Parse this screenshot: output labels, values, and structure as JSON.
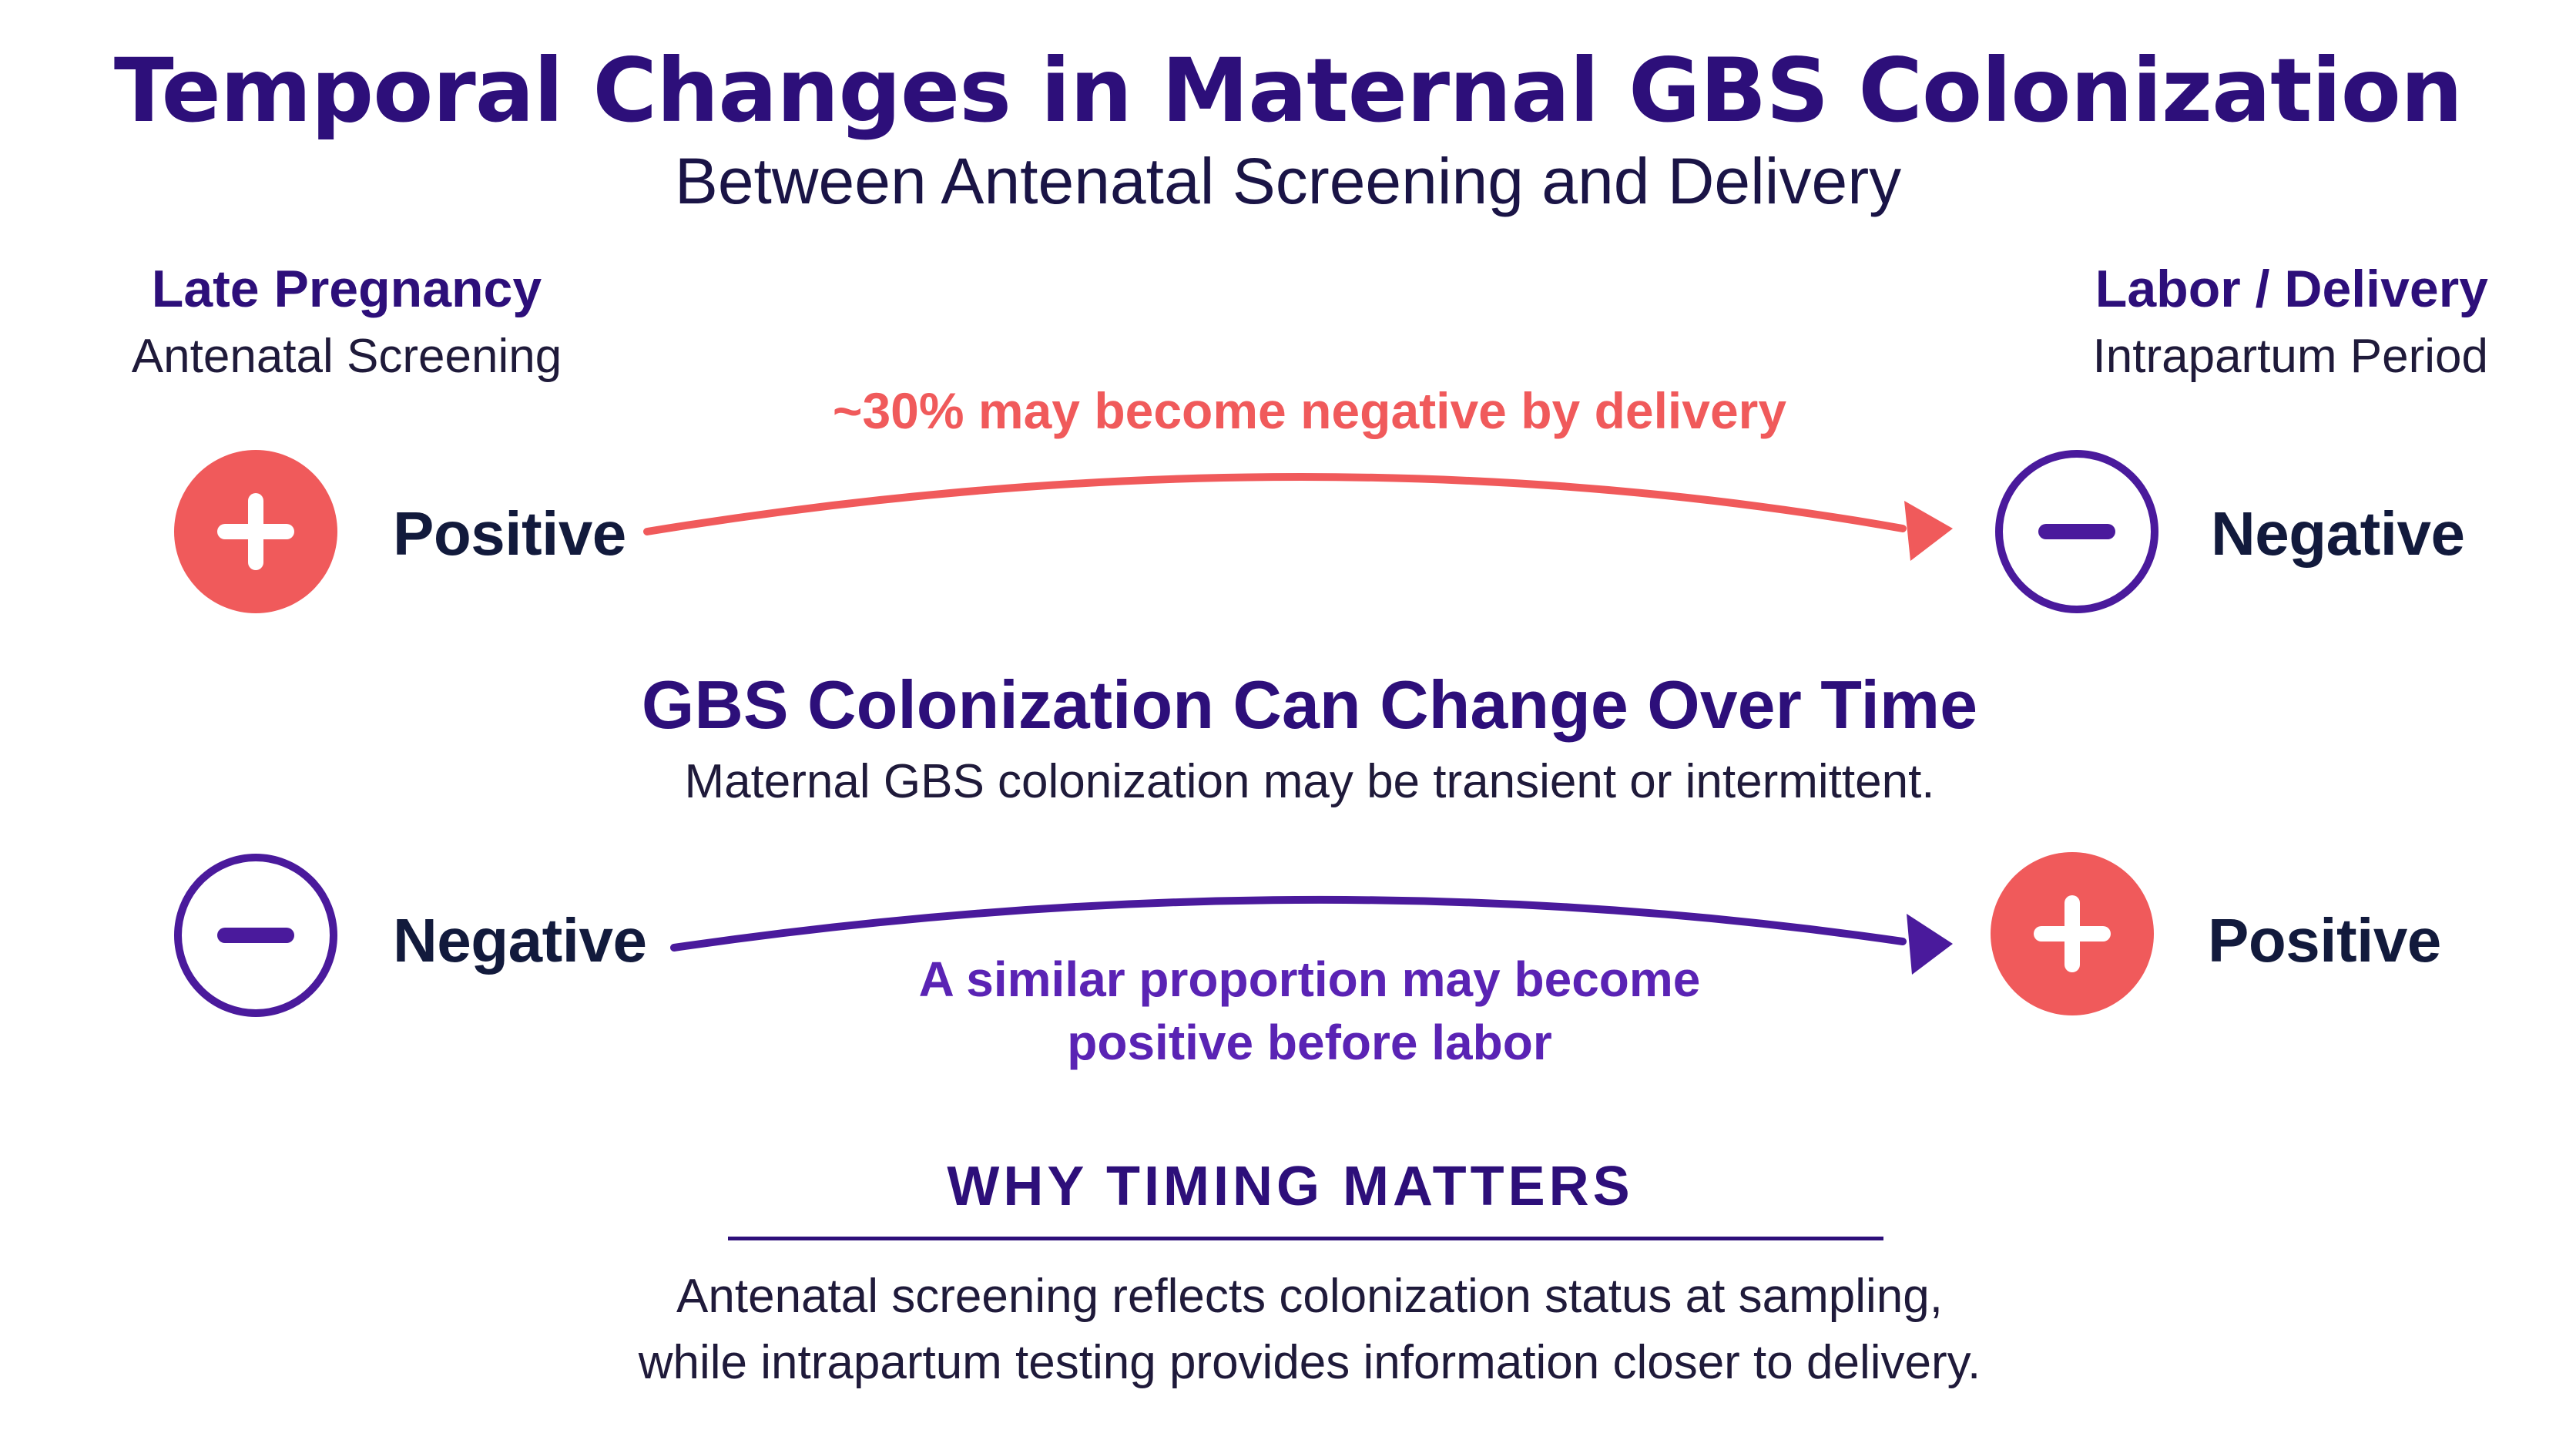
{
  "title": "Temporal Changes in Maternal GBS Colonization",
  "subtitle": "Between Antenatal Screening and Delivery",
  "columns": {
    "left": {
      "heading": "Late Pregnancy",
      "subheading": "Antenatal Screening"
    },
    "right": {
      "heading": "Labor / Delivery",
      "subheading": "Intrapartum Period"
    }
  },
  "flows": [
    {
      "from_label": "Positive",
      "to_label": "Negative",
      "note": "~30% may become negative by delivery",
      "color": "#f05a5b"
    },
    {
      "from_label": "Negative",
      "to_label": "Positive",
      "note_line1": "A similar proportion may become",
      "note_line2": "positive before labor",
      "color": "#5a23b4"
    }
  ],
  "center": {
    "heading": "GBS Colonization Can Change Over Time",
    "text": "Maternal GBS colonization may be transient or intermittent."
  },
  "why": {
    "heading": "WHY TIMING MATTERS",
    "line1": "Antenatal screening reflects colonization status at sampling,",
    "line2": "while intrapartum testing provides information closer to delivery."
  },
  "icons": {
    "positive": "plus-circle-icon",
    "negative": "minus-circle-icon"
  },
  "colors": {
    "title": "#2d0f7a",
    "positive": "#f05a5b",
    "negative": "#4a1a9c"
  }
}
